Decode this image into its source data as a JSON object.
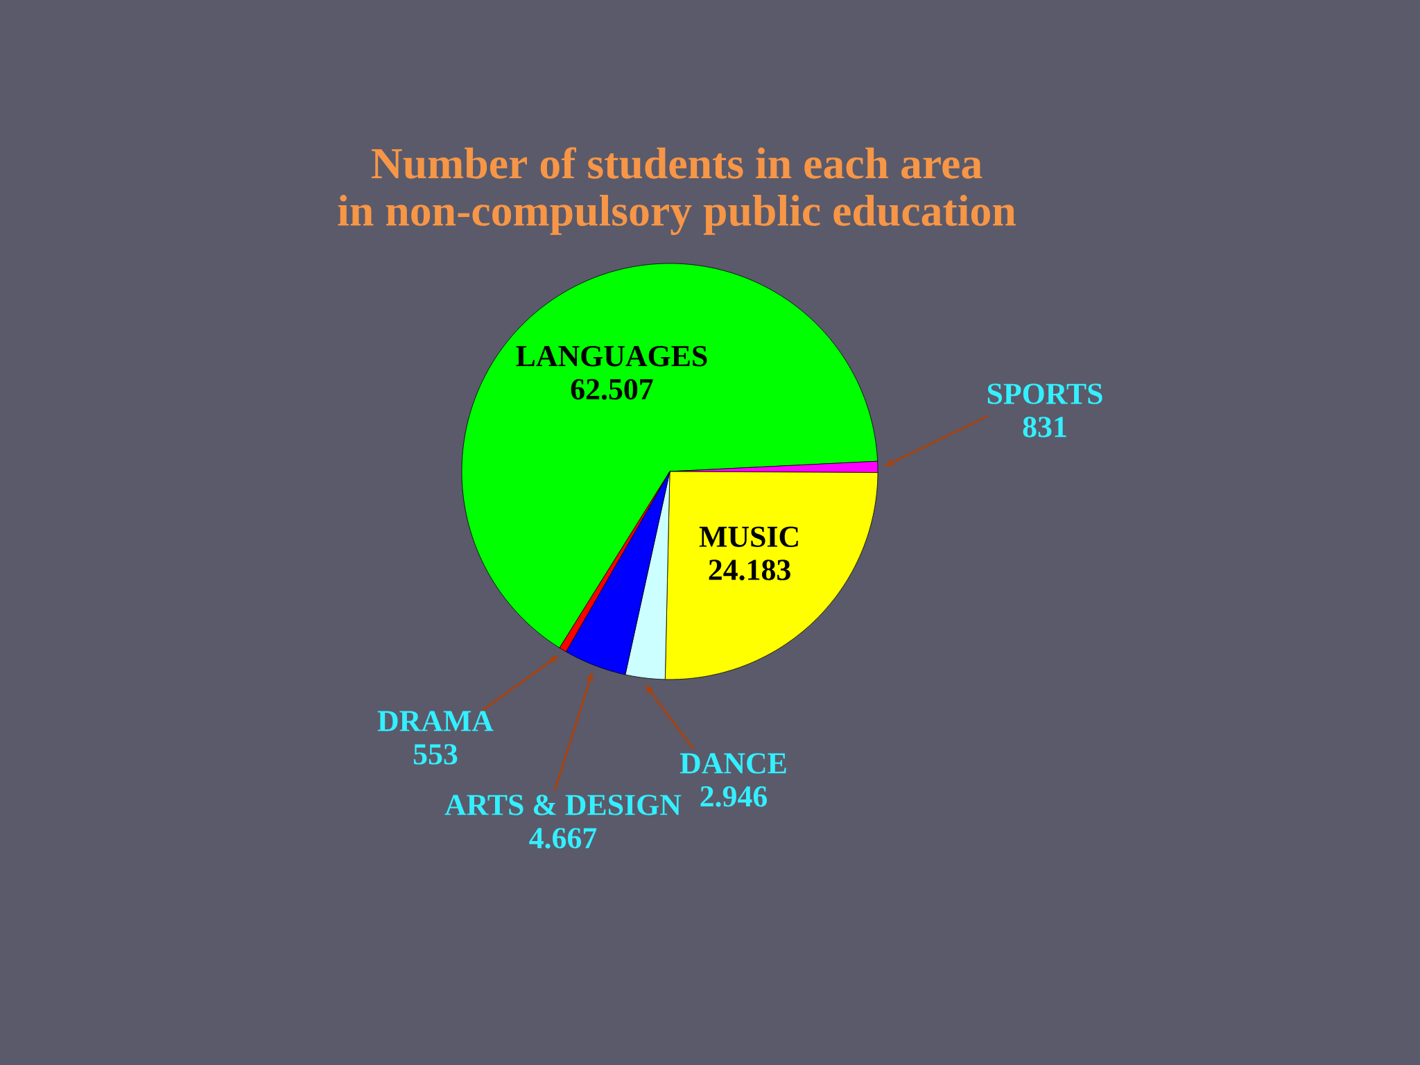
{
  "chart_data": {
    "type": "pie",
    "title": "Number of students in each area",
    "subtitle": "in non-compulsory public education",
    "categories": [
      "LANGUAGES",
      "SPORTS",
      "MUSIC",
      "DANCE",
      "ARTS & DESIGN",
      "DRAMA"
    ],
    "values": [
      62507,
      831,
      24183,
      2946,
      4667,
      553
    ],
    "value_labels": [
      "62.507",
      "831",
      "24.183",
      "2.946",
      "4.667",
      "553"
    ],
    "colors": [
      "#00ff00",
      "#ff00ff",
      "#ffff00",
      "#ccffff",
      "#0000ff",
      "#ff0000"
    ]
  }
}
